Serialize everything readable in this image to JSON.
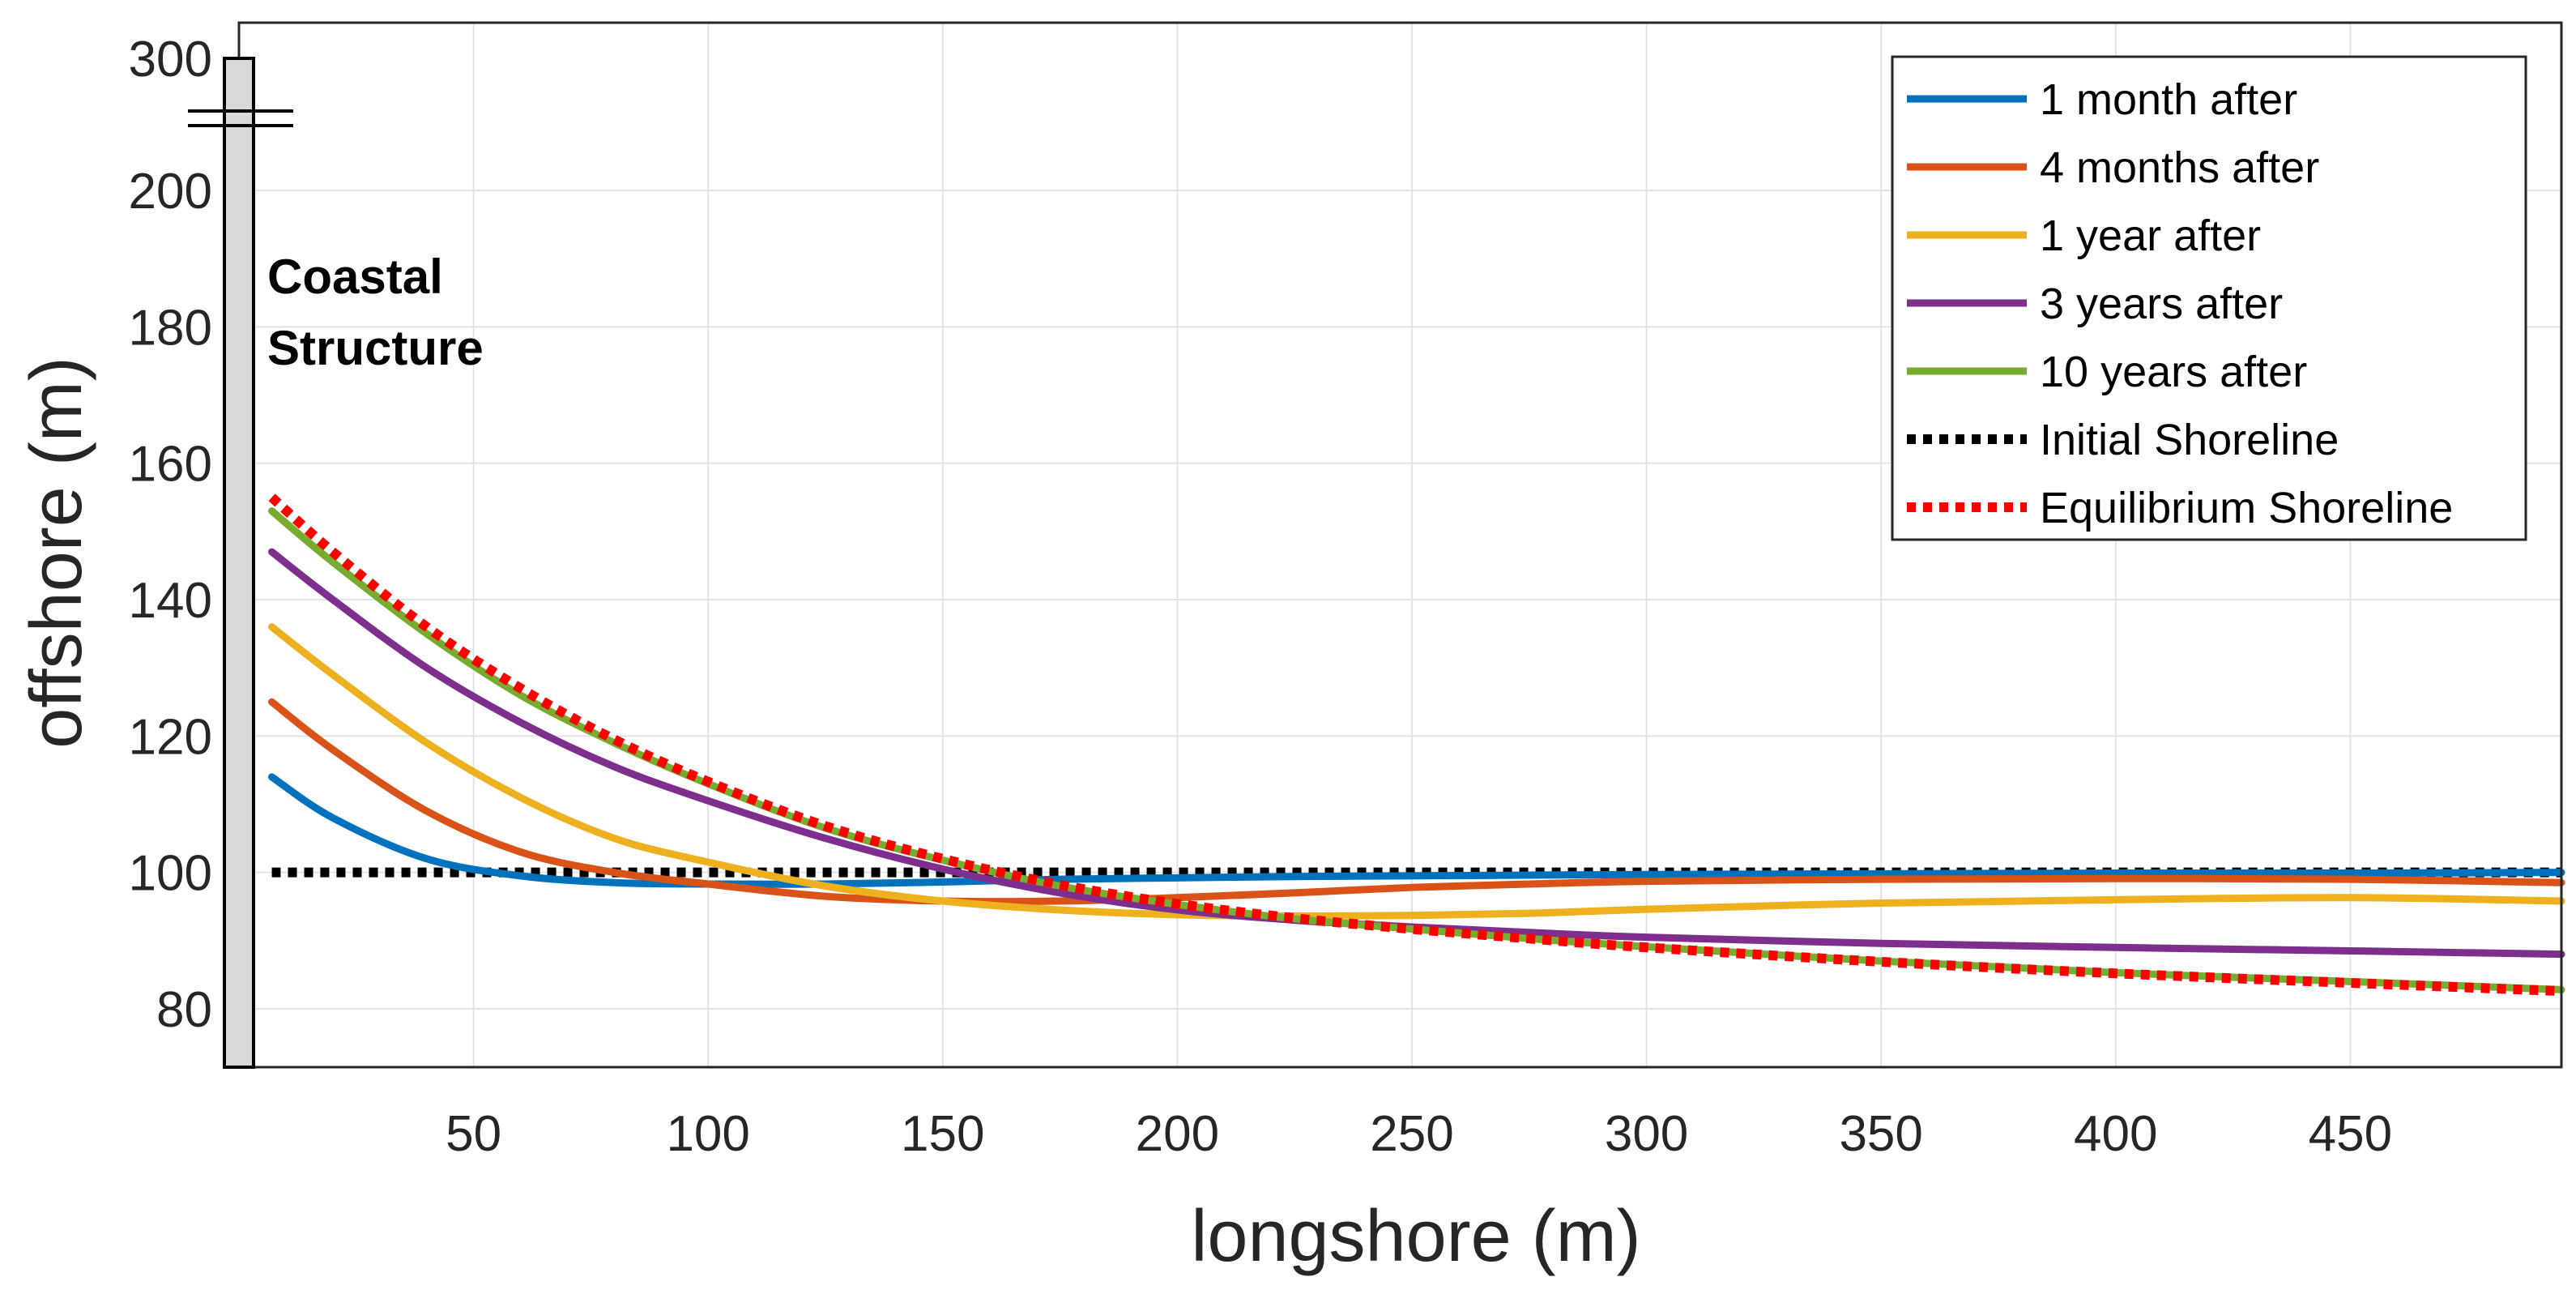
{
  "chart_data": {
    "type": "line",
    "title": "",
    "xlabel": "longshore (m)",
    "ylabel": "offshore (m)",
    "xlim": [
      0,
      495
    ],
    "ylim": [
      70,
      300
    ],
    "y_axis_break": {
      "lower_top": 215,
      "display_top": 300,
      "note": "axis broken between 215 and 300"
    },
    "xticks": [
      50,
      100,
      150,
      200,
      250,
      300,
      350,
      400,
      450
    ],
    "xtick_labels": [
      "50",
      "100",
      "150",
      "200",
      "250",
      "300",
      "350",
      "400",
      "450"
    ],
    "yticks": [
      80,
      100,
      120,
      140,
      160,
      180,
      200,
      300
    ],
    "ytick_labels": [
      "80",
      "100",
      "120",
      "140",
      "160",
      "180",
      "200",
      "300"
    ],
    "grid": true,
    "legend_position": "top-right",
    "annotation": [
      "Coastal",
      "Structure"
    ],
    "x": [
      7,
      20,
      40,
      60,
      80,
      100,
      125,
      150,
      175,
      200,
      225,
      250,
      275,
      300,
      350,
      400,
      450,
      495
    ],
    "series": [
      {
        "name": "1 month after",
        "color": "#0072BD",
        "style": "solid",
        "values": [
          114,
          108,
          102,
          99.5,
          98.5,
          98.3,
          98.3,
          98.6,
          99,
          99.2,
          99.4,
          99.5,
          99.6,
          99.7,
          99.8,
          99.9,
          99.9,
          100
        ]
      },
      {
        "name": "4 months after",
        "color": "#D95319",
        "style": "solid",
        "values": [
          125,
          118,
          109,
          103,
          100,
          98.3,
          96.5,
          95.8,
          95.8,
          96.3,
          97,
          97.8,
          98.3,
          98.7,
          99,
          99.1,
          99,
          98.5
        ]
      },
      {
        "name": "1 year after",
        "color": "#EDB120",
        "style": "solid",
        "values": [
          136,
          129,
          119,
          111,
          105,
          101.5,
          98,
          95.8,
          94.5,
          93.8,
          93.6,
          93.7,
          94,
          94.6,
          95.5,
          96,
          96.3,
          95.8
        ]
      },
      {
        "name": "3 years after",
        "color": "#7E2F8E",
        "style": "solid",
        "values": [
          147,
          140,
          130,
          122,
          115.5,
          110.5,
          105,
          100.5,
          97,
          94.5,
          93,
          92,
          91.2,
          90.5,
          89.6,
          89,
          88.5,
          88
        ]
      },
      {
        "name": "10 years after",
        "color": "#77AC30",
        "style": "solid",
        "values": [
          153,
          145.5,
          135,
          126,
          119,
          113,
          106.5,
          101.8,
          98,
          95.3,
          93.2,
          91.7,
          90.3,
          89.1,
          87,
          85.3,
          84,
          82.8
        ]
      },
      {
        "name": "Initial Shoreline",
        "color": "#000000",
        "style": "dotted",
        "values": [
          100,
          100,
          100,
          100,
          100,
          100,
          100,
          100,
          100,
          100,
          100,
          100,
          100,
          100,
          100,
          100,
          100,
          100
        ]
      },
      {
        "name": "Equilibrium Shoreline",
        "color": "#FF0000",
        "style": "dotted",
        "values": [
          155,
          147,
          136,
          127,
          119.5,
          113.3,
          106.8,
          102,
          98.2,
          95.4,
          93.3,
          91.7,
          90.3,
          89,
          86.9,
          85.2,
          83.8,
          82.6
        ]
      }
    ]
  }
}
